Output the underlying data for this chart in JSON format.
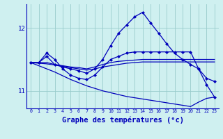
{
  "background_color": "#cff0f0",
  "line_color": "#0000bb",
  "grid_color": "#99cccc",
  "xlabel": "Graphe des températures (°c)",
  "xlabel_fontsize": 7.5,
  "yticks": [
    11,
    12
  ],
  "xticks": [
    0,
    1,
    2,
    3,
    4,
    5,
    6,
    7,
    8,
    9,
    10,
    11,
    12,
    13,
    14,
    15,
    16,
    17,
    18,
    19,
    20,
    21,
    22,
    23
  ],
  "xlim": [
    -0.5,
    23.5
  ],
  "ylim": [
    10.72,
    12.38
  ],
  "series": [
    {
      "x": [
        0,
        1,
        2,
        3,
        4,
        5,
        6,
        7,
        8,
        9,
        10,
        11,
        12,
        13,
        14,
        15,
        16,
        17,
        18,
        19,
        20,
        21,
        22,
        23
      ],
      "y": [
        11.45,
        11.45,
        11.55,
        11.42,
        11.38,
        11.35,
        11.32,
        11.28,
        11.35,
        11.5,
        11.72,
        11.92,
        12.05,
        12.18,
        12.25,
        12.08,
        11.92,
        11.75,
        11.6,
        11.5,
        11.42,
        11.35,
        11.2,
        11.15
      ],
      "marker": "D",
      "markersize": 2.0,
      "linewidth": 0.9
    },
    {
      "x": [
        0,
        1,
        2,
        3,
        4,
        5,
        6,
        7,
        8,
        9,
        10,
        11,
        12,
        13,
        14,
        15,
        16,
        17,
        18,
        19,
        20,
        21,
        22,
        23
      ],
      "y": [
        11.45,
        11.45,
        11.45,
        11.42,
        11.4,
        11.38,
        11.37,
        11.35,
        11.38,
        11.42,
        11.45,
        11.47,
        11.48,
        11.49,
        11.5,
        11.5,
        11.5,
        11.5,
        11.5,
        11.5,
        11.5,
        11.5,
        11.5,
        11.5
      ],
      "marker": null,
      "markersize": 0,
      "linewidth": 0.9
    },
    {
      "x": [
        0,
        1,
        2,
        3,
        4,
        5,
        6,
        7,
        8,
        9,
        10,
        11,
        12,
        13,
        14,
        15,
        16,
        17,
        18,
        19,
        20,
        21,
        22,
        23
      ],
      "y": [
        11.45,
        11.44,
        11.43,
        11.41,
        11.39,
        11.37,
        11.35,
        11.33,
        11.35,
        11.38,
        11.4,
        11.42,
        11.44,
        11.45,
        11.46,
        11.46,
        11.46,
        11.46,
        11.46,
        11.46,
        11.46,
        11.46,
        11.46,
        11.46
      ],
      "marker": null,
      "markersize": 0,
      "linewidth": 0.9
    },
    {
      "x": [
        0,
        1,
        2,
        3,
        4,
        5,
        6,
        7,
        8,
        9,
        10,
        11,
        12,
        13,
        14,
        15,
        16,
        17,
        18,
        19,
        20,
        21,
        22,
        23
      ],
      "y": [
        11.45,
        11.45,
        11.6,
        11.5,
        11.35,
        11.25,
        11.2,
        11.18,
        11.25,
        11.38,
        11.5,
        11.55,
        11.6,
        11.62,
        11.62,
        11.62,
        11.62,
        11.62,
        11.62,
        11.62,
        11.62,
        11.35,
        11.1,
        10.9
      ],
      "marker": "D",
      "markersize": 2.0,
      "linewidth": 0.9
    },
    {
      "x": [
        0,
        1,
        2,
        3,
        4,
        5,
        6,
        7,
        8,
        9,
        10,
        11,
        12,
        13,
        14,
        15,
        16,
        17,
        18,
        19,
        20,
        21,
        22,
        23
      ],
      "y": [
        11.45,
        11.4,
        11.35,
        11.3,
        11.24,
        11.18,
        11.13,
        11.08,
        11.04,
        11.0,
        10.97,
        10.94,
        10.91,
        10.89,
        10.87,
        10.85,
        10.83,
        10.81,
        10.79,
        10.77,
        10.75,
        10.82,
        10.88,
        10.9
      ],
      "marker": null,
      "markersize": 0,
      "linewidth": 0.9
    }
  ]
}
